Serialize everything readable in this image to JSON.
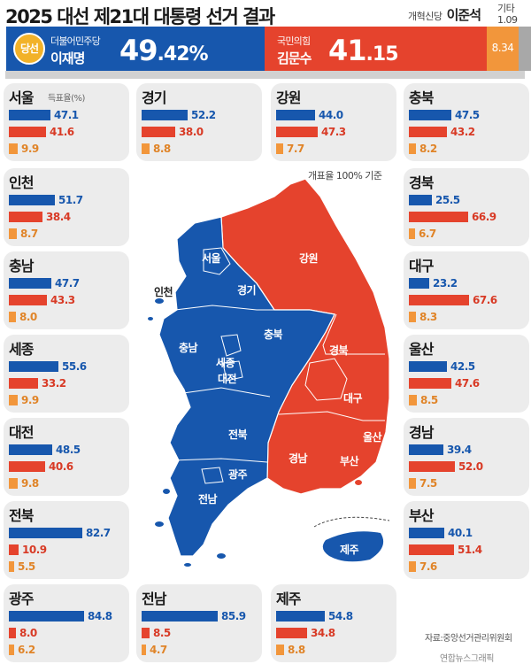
{
  "title": "2025 대선 제21대 대통령 선거 결과",
  "colors": {
    "democratic": "#1757ad",
    "ppp": "#e5432d",
    "reform": "#f2963b",
    "other": "#a8a8a8"
  },
  "national": {
    "badge": "당선",
    "lee": {
      "party": "더불어민주당",
      "name": "이재명",
      "pct_int": "49",
      "pct_dec": ".42",
      "pct_unit": "%"
    },
    "kim": {
      "party": "국민의힘",
      "name": "김문수",
      "pct_int": "41",
      "pct_dec": ".15"
    },
    "lee_jun": {
      "party": "개혁신당",
      "name": "이준석",
      "pct": "8.34"
    },
    "other": {
      "label": "기타",
      "pct": "1.09"
    }
  },
  "note": "개표율 100% 기준",
  "sub_label": "득표율(%)",
  "source": "자료:중앙선거관리위원회",
  "credit": "연합뉴스그래픽",
  "chart_data": {
    "type": "bar",
    "title": "2025 대선 제21대 대통령 선거 결과 — 지역별 득표율(%)",
    "series_names": [
      "이재명",
      "김문수",
      "이준석"
    ],
    "regions": [
      {
        "name": "서울",
        "values": [
          47.1,
          41.6,
          9.9
        ]
      },
      {
        "name": "경기",
        "values": [
          52.2,
          38.0,
          8.8
        ]
      },
      {
        "name": "강원",
        "values": [
          44.0,
          47.3,
          7.7
        ]
      },
      {
        "name": "충북",
        "values": [
          47.5,
          43.2,
          8.2
        ]
      },
      {
        "name": "인천",
        "values": [
          51.7,
          38.4,
          8.7
        ]
      },
      {
        "name": "경북",
        "values": [
          25.5,
          66.9,
          6.7
        ]
      },
      {
        "name": "충남",
        "values": [
          47.7,
          43.3,
          8.0
        ]
      },
      {
        "name": "대구",
        "values": [
          23.2,
          67.6,
          8.3
        ]
      },
      {
        "name": "세종",
        "values": [
          55.6,
          33.2,
          9.9
        ]
      },
      {
        "name": "울산",
        "values": [
          42.5,
          47.6,
          8.5
        ]
      },
      {
        "name": "대전",
        "values": [
          48.5,
          40.6,
          9.8
        ]
      },
      {
        "name": "경남",
        "values": [
          39.4,
          52.0,
          7.5
        ]
      },
      {
        "name": "전북",
        "values": [
          82.7,
          10.9,
          5.5
        ]
      },
      {
        "name": "부산",
        "values": [
          40.1,
          51.4,
          7.6
        ]
      },
      {
        "name": "광주",
        "values": [
          84.8,
          8.0,
          6.2
        ]
      },
      {
        "name": "전남",
        "values": [
          85.9,
          8.5,
          4.7
        ]
      },
      {
        "name": "제주",
        "values": [
          54.8,
          34.8,
          8.8
        ]
      }
    ],
    "ylim": [
      0,
      100
    ]
  },
  "map": {
    "labels": [
      "서울",
      "경기",
      "인천",
      "강원",
      "충남",
      "충북",
      "세종",
      "대전",
      "경북",
      "대구",
      "전북",
      "경남",
      "울산",
      "부산",
      "광주",
      "전남",
      "제주"
    ],
    "winner": {
      "서울": "democratic",
      "경기": "democratic",
      "인천": "democratic",
      "강원": "ppp",
      "충남": "democratic",
      "충북": "democratic",
      "세종": "democratic",
      "대전": "democratic",
      "경북": "ppp",
      "대구": "ppp",
      "전북": "democratic",
      "경남": "ppp",
      "울산": "ppp",
      "부산": "ppp",
      "광주": "democratic",
      "전남": "democratic",
      "제주": "democratic"
    }
  }
}
